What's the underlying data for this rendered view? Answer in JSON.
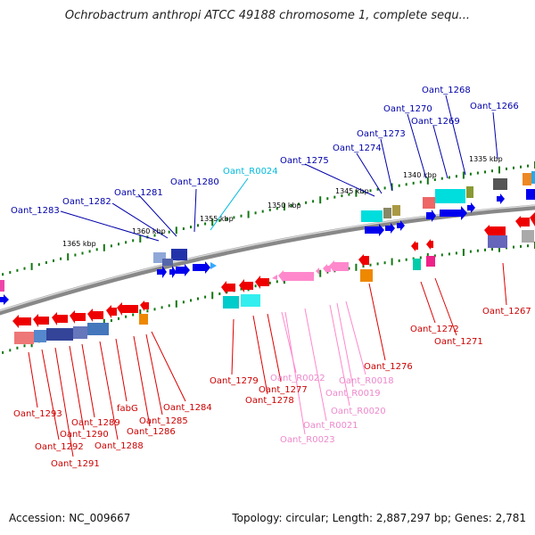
{
  "title": "Ochrobactrum anthropi ATCC 49188 chromosome 1, complete sequ...",
  "footer": {
    "accession": "Accession: NC_009667",
    "topology": "Topology: circular; Length: 2,887,297 bp; Genes: 2,781"
  },
  "colors": {
    "accent_blue": "#0000cc",
    "accent_red": "#ff0000",
    "accent_pink": "#ff88cc",
    "accent_cyan": "#00cccc",
    "backbone": "#888888",
    "tick_green": "#117711"
  },
  "scale_labels": [
    "1365 kbp",
    "1360 kbp",
    "1355 kbp",
    "1350 kbp",
    "1345 kbp",
    "1340 kbp",
    "1335 kbp"
  ],
  "genes_top": [
    "Oant_1283",
    "Oant_1282",
    "Oant_1281",
    "Oant_1280",
    "Oant_R0024",
    "Oant_1275",
    "Oant_1274",
    "Oant_1273",
    "Oant_1270",
    "Oant_1269",
    "Oant_1268",
    "Oant_1266"
  ],
  "genes_bottom": [
    "Oant_1293",
    "Oant_1292",
    "Oant_1291",
    "Oant_1290",
    "Oant_1289",
    "Oant_1288",
    "fabG",
    "Oant_1286",
    "Oant_1285",
    "Oant_1284",
    "Oant_1279",
    "Oant_1278",
    "Oant_1277",
    "Oant_R0022",
    "Oant_R0023",
    "Oant_R0021",
    "Oant_R0020",
    "Oant_R0019",
    "Oant_R0018",
    "Oant_1276",
    "Oant_1272",
    "Oant_1271",
    "Oant_1267"
  ]
}
